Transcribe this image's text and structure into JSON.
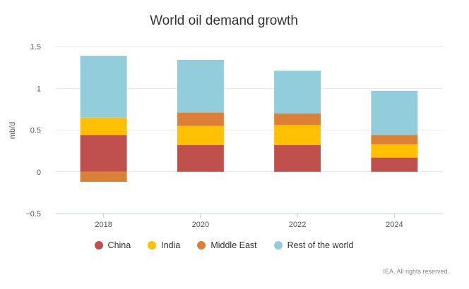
{
  "chart_data": {
    "type": "bar",
    "stacked": true,
    "title": "World oil demand growth",
    "ylabel": "mb/d",
    "xlabel": "",
    "categories": [
      "2018",
      "2020",
      "2022",
      "2024"
    ],
    "ylim": [
      -0.5,
      1.5
    ],
    "yticks": [
      1.5,
      1,
      0.5,
      0,
      -0.5
    ],
    "ytick_labels": [
      "1.5",
      "1",
      "0.5",
      "0",
      "−0.5"
    ],
    "grid": true,
    "legend_position": "bottom",
    "series": [
      {
        "name": "China",
        "color": "#c0504d",
        "values": [
          0.44,
          0.32,
          0.32,
          0.17
        ]
      },
      {
        "name": "India",
        "color": "#ffc000",
        "values": [
          0.21,
          0.23,
          0.24,
          0.16
        ]
      },
      {
        "name": "Middle East",
        "color": "#dd8037",
        "values": [
          -0.12,
          0.16,
          0.14,
          0.11
        ]
      },
      {
        "name": "Rest of the world",
        "color": "#92cddc",
        "values": [
          0.74,
          0.63,
          0.51,
          0.53
        ]
      }
    ]
  },
  "footer": {
    "source_note": "IEA. All rights reserved."
  }
}
